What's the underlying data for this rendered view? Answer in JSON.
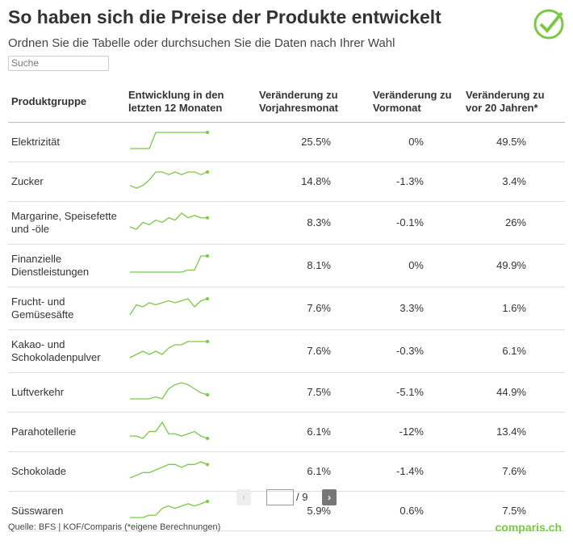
{
  "header": {
    "title": "So haben sich die Preise der Produkte entwickelt",
    "subtitle": "Ordnen Sie die Tabelle oder durchsuchen Sie die Daten nach Ihrer Wahl",
    "search": "Suche"
  },
  "table": {
    "columns": [
      "Produktgruppe",
      "Entwicklung in den letzten 12 Monaten",
      "Veränderung zu Vorjahresmonat",
      "Veränderung zu Vormonat",
      "Veränderung zu vor 20 Jahren*"
    ],
    "line_color": "#7ac943",
    "rows": [
      {
        "name": "Elektrizität",
        "trend": [
          0,
          0,
          0,
          0,
          10,
          10,
          10,
          10,
          10,
          10,
          10,
          10,
          10
        ],
        "yoy": "25.5%",
        "mom": "0%",
        "y20": "49.5%"
      },
      {
        "name": "Zucker",
        "trend": [
          3,
          2,
          3,
          5,
          8,
          8,
          7,
          8,
          7,
          8,
          8,
          7,
          8
        ],
        "yoy": "14.8%",
        "mom": "-1.3%",
        "y20": "3.4%"
      },
      {
        "name": "Margarine, Speisefette und -öle",
        "trend": [
          2,
          1,
          4,
          3,
          5,
          4,
          6,
          5,
          8,
          6,
          7,
          6,
          6
        ],
        "yoy": "8.3%",
        "mom": "-0.1%",
        "y20": "26%"
      },
      {
        "name": "Finanzielle Dienstleistungen",
        "trend": [
          0,
          0,
          0,
          0,
          0,
          0,
          0,
          0,
          0,
          1,
          1,
          8,
          8
        ],
        "yoy": "8.1%",
        "mom": "0%",
        "y20": "49.9%"
      },
      {
        "name": "Frucht- und Gemüsesäfte",
        "trend": [
          0,
          5,
          4,
          6,
          5,
          6,
          7,
          6,
          7,
          8,
          4,
          7,
          8
        ],
        "yoy": "7.6%",
        "mom": "3.3%",
        "y20": "1.6%"
      },
      {
        "name": "Kakao- und Schokoladenpulver",
        "trend": [
          2,
          3,
          4,
          3,
          4,
          3,
          5,
          6,
          6,
          7,
          7,
          7,
          7
        ],
        "yoy": "7.6%",
        "mom": "-0.3%",
        "y20": "6.1%"
      },
      {
        "name": "Luftverkehr",
        "trend": [
          1,
          1,
          1,
          1,
          2,
          1,
          6,
          8,
          9,
          8,
          6,
          4,
          3
        ],
        "yoy": "7.5%",
        "mom": "-5.1%",
        "y20": "44.9%"
      },
      {
        "name": "Parahotellerie",
        "trend": [
          3,
          3,
          2,
          5,
          5,
          9,
          4,
          4,
          3,
          4,
          5,
          3,
          2
        ],
        "yoy": "6.1%",
        "mom": "-12%",
        "y20": "13.4%"
      },
      {
        "name": "Schokolade",
        "trend": [
          1,
          2,
          3,
          3,
          4,
          5,
          6,
          6,
          5,
          6,
          6,
          7,
          6
        ],
        "yoy": "6.1%",
        "mom": "-1.4%",
        "y20": "7.6%"
      },
      {
        "name": "Süsswaren",
        "trend": [
          1,
          1,
          1,
          2,
          2,
          5,
          6,
          5,
          6,
          7,
          6,
          7,
          8
        ],
        "yoy": "5.9%",
        "mom": "0.6%",
        "y20": "7.5%"
      }
    ]
  },
  "pagination": {
    "label": "/ 9"
  },
  "footer": {
    "source": "Quelle: BFS | KOF/Comparis (*eigene Berechnungen)",
    "logo": "comparis.ch"
  }
}
